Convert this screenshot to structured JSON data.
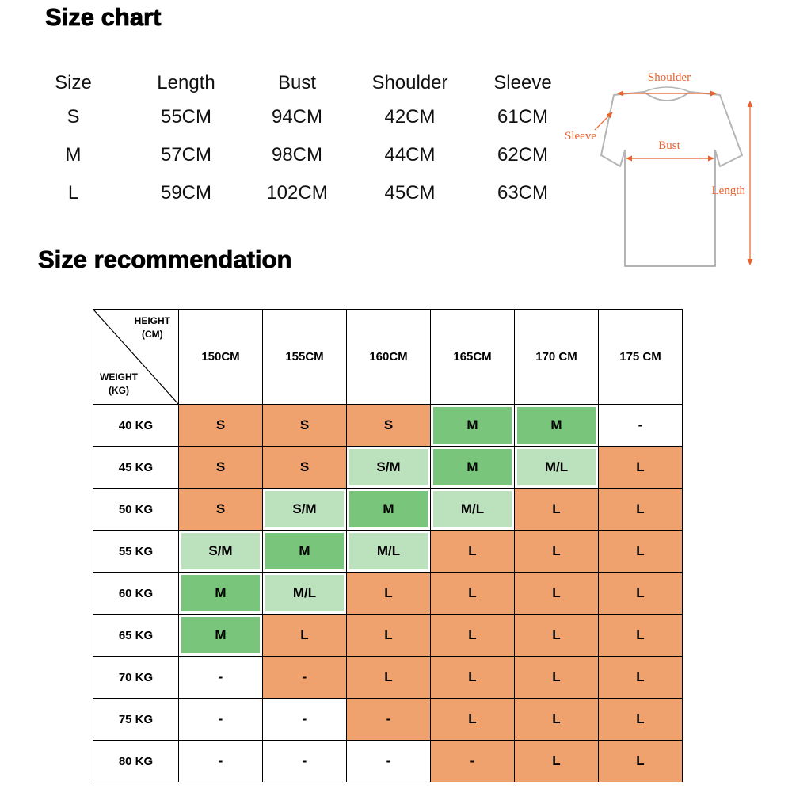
{
  "size_chart": {
    "title": "Size chart",
    "headers": [
      "Size",
      "Length",
      "Bust",
      "Shoulder",
      "Sleeve"
    ],
    "rows": [
      [
        "S",
        "55CM",
        "94CM",
        "42CM",
        "61CM"
      ],
      [
        "M",
        "57CM",
        "98CM",
        "44CM",
        "62CM"
      ],
      [
        "L",
        "59CM",
        "102CM",
        "45CM",
        "63CM"
      ]
    ]
  },
  "diagram": {
    "label_color": "#E8622D",
    "labels": {
      "shoulder": "Shoulder",
      "sleeve": "Sleeve",
      "bust": "Bust",
      "length": "Length"
    }
  },
  "recommendation": {
    "title": "Size recommendation",
    "corner": {
      "height_label": "HEIGHT",
      "height_unit": "(CM)",
      "weight_label": "WEIGHT",
      "weight_unit": "(KG)"
    },
    "height_headers": [
      "150CM",
      "155CM",
      "160CM",
      "165CM",
      "170 CM",
      "175 CM"
    ],
    "colors": {
      "orange": "#F0A26E",
      "green": "#7AC57C",
      "lightgreen": "#BBE2BC",
      "white": "#FFFFFF"
    },
    "rows": [
      {
        "weight": "40 KG",
        "cells": [
          {
            "t": "S",
            "c": "orange"
          },
          {
            "t": "S",
            "c": "orange"
          },
          {
            "t": "S",
            "c": "orange"
          },
          {
            "t": "M",
            "c": "green"
          },
          {
            "t": "M",
            "c": "green"
          },
          {
            "t": "-",
            "c": "white"
          }
        ]
      },
      {
        "weight": "45 KG",
        "cells": [
          {
            "t": "S",
            "c": "orange"
          },
          {
            "t": "S",
            "c": "orange"
          },
          {
            "t": "S/M",
            "c": "lightgreen"
          },
          {
            "t": "M",
            "c": "green"
          },
          {
            "t": "M/L",
            "c": "lightgreen"
          },
          {
            "t": "L",
            "c": "orange"
          }
        ]
      },
      {
        "weight": "50 KG",
        "cells": [
          {
            "t": "S",
            "c": "orange"
          },
          {
            "t": "S/M",
            "c": "lightgreen"
          },
          {
            "t": "M",
            "c": "green"
          },
          {
            "t": "M/L",
            "c": "lightgreen"
          },
          {
            "t": "L",
            "c": "orange"
          },
          {
            "t": "L",
            "c": "orange"
          }
        ]
      },
      {
        "weight": "55 KG",
        "cells": [
          {
            "t": "S/M",
            "c": "lightgreen"
          },
          {
            "t": "M",
            "c": "green"
          },
          {
            "t": "M/L",
            "c": "lightgreen"
          },
          {
            "t": "L",
            "c": "orange"
          },
          {
            "t": "L",
            "c": "orange"
          },
          {
            "t": "L",
            "c": "orange"
          }
        ]
      },
      {
        "weight": "60 KG",
        "cells": [
          {
            "t": "M",
            "c": "green"
          },
          {
            "t": "M/L",
            "c": "lightgreen"
          },
          {
            "t": "L",
            "c": "orange"
          },
          {
            "t": "L",
            "c": "orange"
          },
          {
            "t": "L",
            "c": "orange"
          },
          {
            "t": "L",
            "c": "orange"
          }
        ]
      },
      {
        "weight": "65 KG",
        "cells": [
          {
            "t": "M",
            "c": "green"
          },
          {
            "t": "L",
            "c": "orange"
          },
          {
            "t": "L",
            "c": "orange"
          },
          {
            "t": "L",
            "c": "orange"
          },
          {
            "t": "L",
            "c": "orange"
          },
          {
            "t": "L",
            "c": "orange"
          }
        ]
      },
      {
        "weight": "70 KG",
        "cells": [
          {
            "t": "-",
            "c": "white"
          },
          {
            "t": "-",
            "c": "orange"
          },
          {
            "t": "L",
            "c": "orange"
          },
          {
            "t": "L",
            "c": "orange"
          },
          {
            "t": "L",
            "c": "orange"
          },
          {
            "t": "L",
            "c": "orange"
          }
        ]
      },
      {
        "weight": "75 KG",
        "cells": [
          {
            "t": "-",
            "c": "white"
          },
          {
            "t": "-",
            "c": "white"
          },
          {
            "t": "-",
            "c": "orange"
          },
          {
            "t": "L",
            "c": "orange"
          },
          {
            "t": "L",
            "c": "orange"
          },
          {
            "t": "L",
            "c": "orange"
          }
        ]
      },
      {
        "weight": "80 KG",
        "cells": [
          {
            "t": "-",
            "c": "white"
          },
          {
            "t": "-",
            "c": "white"
          },
          {
            "t": "-",
            "c": "white"
          },
          {
            "t": "-",
            "c": "orange"
          },
          {
            "t": "L",
            "c": "orange"
          },
          {
            "t": "L",
            "c": "orange"
          }
        ]
      }
    ]
  },
  "chart_data": [
    {
      "type": "table",
      "title": "Size chart",
      "columns": [
        "Size",
        "Length",
        "Bust",
        "Shoulder",
        "Sleeve"
      ],
      "rows": [
        [
          "S",
          "55CM",
          "94CM",
          "42CM",
          "61CM"
        ],
        [
          "M",
          "57CM",
          "98CM",
          "44CM",
          "62CM"
        ],
        [
          "L",
          "59CM",
          "102CM",
          "45CM",
          "63CM"
        ]
      ]
    },
    {
      "type": "table",
      "title": "Size recommendation",
      "x_axis_label": "HEIGHT (CM)",
      "y_axis_label": "WEIGHT (KG)",
      "columns": [
        "150CM",
        "155CM",
        "160CM",
        "165CM",
        "170 CM",
        "175 CM"
      ],
      "row_labels": [
        "40 KG",
        "45 KG",
        "50 KG",
        "55 KG",
        "60 KG",
        "65 KG",
        "70 KG",
        "75 KG",
        "80 KG"
      ],
      "values": [
        [
          "S",
          "S",
          "S",
          "M",
          "M",
          "-"
        ],
        [
          "S",
          "S",
          "S/M",
          "M",
          "M/L",
          "L"
        ],
        [
          "S",
          "S/M",
          "M",
          "M/L",
          "L",
          "L"
        ],
        [
          "S/M",
          "M",
          "M/L",
          "L",
          "L",
          "L"
        ],
        [
          "M",
          "M/L",
          "L",
          "L",
          "L",
          "L"
        ],
        [
          "M",
          "L",
          "L",
          "L",
          "L",
          "L"
        ],
        [
          "-",
          "-",
          "L",
          "L",
          "L",
          "L"
        ],
        [
          "-",
          "-",
          "-",
          "L",
          "L",
          "L"
        ],
        [
          "-",
          "-",
          "-",
          "-",
          "L",
          "L"
        ]
      ]
    }
  ]
}
